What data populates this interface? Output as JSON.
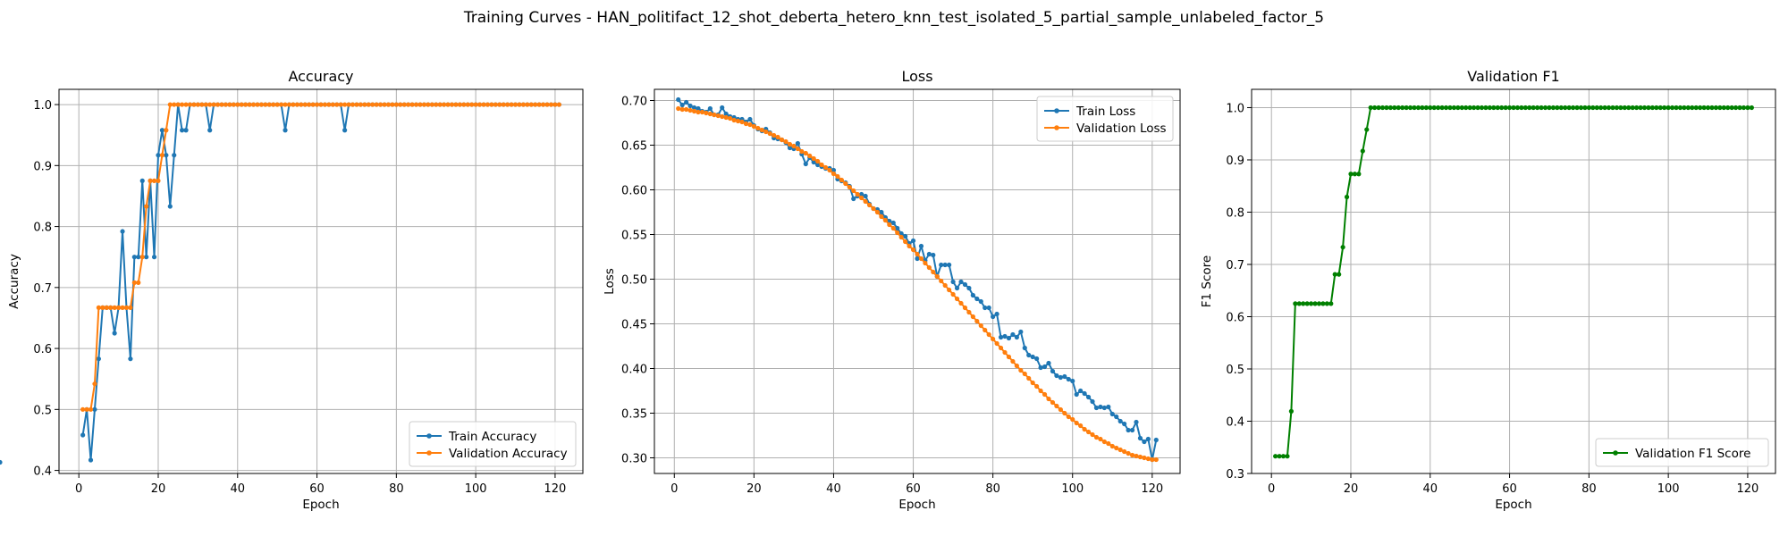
{
  "figure": {
    "suptitle": "Training Curves - HAN_politifact_12_shot_deberta_hetero_knn_test_isolated_5_partial_sample_unlabeled_factor_5"
  },
  "colors": {
    "train": "#1f77b4",
    "validation": "#ff7f0e",
    "f1": "#008000",
    "grid": "#b0b0b0"
  },
  "chart_data": [
    {
      "type": "line",
      "title": "Accuracy",
      "xlabel": "Epoch",
      "ylabel": "Accuracy",
      "xlim": [
        -5,
        127
      ],
      "ylim": [
        0.395,
        1.025
      ],
      "xticks": [
        0,
        20,
        40,
        60,
        80,
        100,
        120
      ],
      "yticks": [
        0.4,
        0.5,
        0.6,
        0.7,
        0.8,
        0.9,
        1.0
      ],
      "ytick_labels": [
        "0.4",
        "0.5",
        "0.6",
        "0.7",
        "0.8",
        "0.9",
        "1.0"
      ],
      "grid": true,
      "legend_position": "lower-right",
      "x": {
        "start": 1,
        "end": 121,
        "step": 1
      },
      "series": [
        {
          "name": "Train Accuracy",
          "color_key": "train",
          "values": [
            0.458,
            0.5,
            0.417,
            0.5,
            0.583,
            0.667,
            0.667,
            0.667,
            0.625,
            0.667,
            0.792,
            0.667,
            0.583,
            0.75,
            0.75,
            0.875,
            0.75,
            0.875,
            0.75,
            0.917,
            0.958,
            0.917,
            0.833,
            0.917,
            1.0,
            0.958,
            0.958,
            1.0,
            1.0,
            1.0,
            1.0,
            1.0,
            0.958,
            1.0,
            1.0,
            1.0,
            1.0,
            1.0,
            1.0,
            1.0,
            1.0,
            1.0,
            1.0,
            1.0,
            1.0,
            1.0,
            1.0,
            1.0,
            1.0,
            1.0,
            1.0,
            0.958,
            1.0,
            1.0,
            1.0,
            1.0,
            1.0,
            1.0,
            1.0,
            1.0,
            1.0,
            1.0,
            1.0,
            1.0,
            1.0,
            1.0,
            0.958,
            1.0,
            1.0,
            1.0,
            1.0,
            1.0,
            1.0,
            1.0,
            1.0,
            1.0,
            1.0,
            1.0,
            1.0,
            1.0,
            1.0,
            1.0,
            1.0,
            1.0,
            1.0,
            1.0,
            1.0,
            1.0,
            1.0,
            1.0,
            1.0,
            1.0,
            1.0,
            1.0,
            1.0,
            1.0,
            1.0,
            1.0,
            1.0,
            1.0,
            1.0,
            1.0,
            1.0,
            1.0,
            1.0,
            1.0,
            1.0,
            1.0,
            1.0,
            1.0,
            1.0,
            1.0,
            1.0,
            1.0,
            1.0,
            1.0,
            1.0,
            1.0,
            1.0,
            1.0,
            1.0
          ]
        },
        {
          "name": "Validation Accuracy",
          "color_key": "validation",
          "values": [
            0.5,
            0.5,
            0.5,
            0.542,
            0.667,
            0.667,
            0.667,
            0.667,
            0.667,
            0.667,
            0.667,
            0.667,
            0.667,
            0.708,
            0.708,
            0.75,
            0.833,
            0.875,
            0.875,
            0.875,
            0.917,
            0.958,
            1.0,
            1.0,
            1.0,
            1.0,
            1.0,
            1.0,
            1.0,
            1.0,
            1.0,
            1.0,
            1.0,
            1.0,
            1.0,
            1.0,
            1.0,
            1.0,
            1.0,
            1.0,
            1.0,
            1.0,
            1.0,
            1.0,
            1.0,
            1.0,
            1.0,
            1.0,
            1.0,
            1.0,
            1.0,
            1.0,
            1.0,
            1.0,
            1.0,
            1.0,
            1.0,
            1.0,
            1.0,
            1.0,
            1.0,
            1.0,
            1.0,
            1.0,
            1.0,
            1.0,
            1.0,
            1.0,
            1.0,
            1.0,
            1.0,
            1.0,
            1.0,
            1.0,
            1.0,
            1.0,
            1.0,
            1.0,
            1.0,
            1.0,
            1.0,
            1.0,
            1.0,
            1.0,
            1.0,
            1.0,
            1.0,
            1.0,
            1.0,
            1.0,
            1.0,
            1.0,
            1.0,
            1.0,
            1.0,
            1.0,
            1.0,
            1.0,
            1.0,
            1.0,
            1.0,
            1.0,
            1.0,
            1.0,
            1.0,
            1.0,
            1.0,
            1.0,
            1.0,
            1.0,
            1.0,
            1.0,
            1.0,
            1.0,
            1.0,
            1.0,
            1.0,
            1.0,
            1.0,
            1.0,
            1.0
          ]
        }
      ]
    },
    {
      "type": "line",
      "title": "Loss",
      "xlabel": "Epoch",
      "ylabel": "Loss",
      "xlim": [
        -5,
        127
      ],
      "ylim": [
        0.2825,
        0.7125
      ],
      "xticks": [
        0,
        20,
        40,
        60,
        80,
        100,
        120
      ],
      "yticks": [
        0.3,
        0.35,
        0.4,
        0.45,
        0.5,
        0.55,
        0.6,
        0.65,
        0.7
      ],
      "ytick_labels": [
        "0.30",
        "0.35",
        "0.40",
        "0.45",
        "0.50",
        "0.55",
        "0.60",
        "0.65",
        "0.70"
      ],
      "grid": true,
      "legend_position": "upper-right",
      "x": {
        "start": 1,
        "end": 121,
        "step": 1
      },
      "series": [
        {
          "name": "Train Loss",
          "color_key": "train",
          "values": [
            0.701,
            0.695,
            0.698,
            0.694,
            0.692,
            0.691,
            0.688,
            0.687,
            0.691,
            0.684,
            0.684,
            0.692,
            0.685,
            0.682,
            0.681,
            0.679,
            0.679,
            0.676,
            0.679,
            0.672,
            0.668,
            0.666,
            0.668,
            0.664,
            0.658,
            0.657,
            0.656,
            0.653,
            0.647,
            0.646,
            0.652,
            0.64,
            0.629,
            0.636,
            0.631,
            0.628,
            0.626,
            0.624,
            0.624,
            0.622,
            0.612,
            0.61,
            0.608,
            0.604,
            0.59,
            0.593,
            0.595,
            0.593,
            0.584,
            0.579,
            0.578,
            0.575,
            0.569,
            0.565,
            0.563,
            0.557,
            0.551,
            0.548,
            0.54,
            0.543,
            0.523,
            0.537,
            0.521,
            0.528,
            0.527,
            0.503,
            0.516,
            0.516,
            0.516,
            0.497,
            0.49,
            0.497,
            0.494,
            0.49,
            0.482,
            0.478,
            0.475,
            0.468,
            0.468,
            0.458,
            0.461,
            0.435,
            0.436,
            0.434,
            0.438,
            0.435,
            0.441,
            0.423,
            0.415,
            0.413,
            0.411,
            0.401,
            0.402,
            0.406,
            0.397,
            0.392,
            0.39,
            0.391,
            0.388,
            0.386,
            0.371,
            0.375,
            0.372,
            0.368,
            0.363,
            0.356,
            0.357,
            0.356,
            0.357,
            0.349,
            0.346,
            0.341,
            0.338,
            0.331,
            0.331,
            0.34,
            0.322,
            0.318,
            0.321,
            0.298,
            0.32,
            0.295
          ]
        },
        {
          "name": "Validation Loss",
          "color_key": "validation",
          "values": [
            0.691,
            0.69,
            0.69,
            0.689,
            0.688,
            0.687,
            0.687,
            0.686,
            0.685,
            0.684,
            0.683,
            0.682,
            0.681,
            0.68,
            0.678,
            0.677,
            0.676,
            0.674,
            0.673,
            0.671,
            0.669,
            0.667,
            0.665,
            0.663,
            0.661,
            0.659,
            0.656,
            0.654,
            0.651,
            0.649,
            0.646,
            0.643,
            0.641,
            0.638,
            0.635,
            0.632,
            0.628,
            0.625,
            0.622,
            0.618,
            0.615,
            0.611,
            0.607,
            0.603,
            0.599,
            0.595,
            0.591,
            0.587,
            0.583,
            0.579,
            0.575,
            0.57,
            0.566,
            0.561,
            0.557,
            0.552,
            0.547,
            0.542,
            0.537,
            0.533,
            0.528,
            0.523,
            0.518,
            0.513,
            0.508,
            0.503,
            0.498,
            0.493,
            0.488,
            0.483,
            0.478,
            0.473,
            0.468,
            0.463,
            0.458,
            0.453,
            0.448,
            0.443,
            0.438,
            0.433,
            0.428,
            0.423,
            0.418,
            0.413,
            0.408,
            0.403,
            0.398,
            0.394,
            0.389,
            0.384,
            0.38,
            0.375,
            0.371,
            0.366,
            0.362,
            0.358,
            0.354,
            0.35,
            0.346,
            0.343,
            0.339,
            0.336,
            0.332,
            0.329,
            0.326,
            0.323,
            0.321,
            0.318,
            0.316,
            0.313,
            0.311,
            0.309,
            0.307,
            0.305,
            0.303,
            0.302,
            0.301,
            0.3,
            0.299,
            0.298,
            0.298
          ]
        }
      ]
    },
    {
      "type": "line",
      "title": "Validation F1",
      "xlabel": "Epoch",
      "ylabel": "F1 Score",
      "xlim": [
        -5,
        127
      ],
      "ylim": [
        0.3,
        1.035
      ],
      "xticks": [
        0,
        20,
        40,
        60,
        80,
        100,
        120
      ],
      "yticks": [
        0.3,
        0.4,
        0.5,
        0.6,
        0.7,
        0.8,
        0.9,
        1.0
      ],
      "ytick_labels": [
        "0.3",
        "0.4",
        "0.5",
        "0.6",
        "0.7",
        "0.8",
        "0.9",
        "1.0"
      ],
      "grid": true,
      "legend_position": "lower-right",
      "x": {
        "start": 1,
        "end": 121,
        "step": 1
      },
      "series": [
        {
          "name": "Validation F1 Score",
          "color_key": "f1",
          "values": [
            0.333,
            0.333,
            0.333,
            0.333,
            0.419,
            0.625,
            0.625,
            0.625,
            0.625,
            0.625,
            0.625,
            0.625,
            0.625,
            0.625,
            0.625,
            0.681,
            0.681,
            0.733,
            0.829,
            0.873,
            0.873,
            0.873,
            0.917,
            0.958,
            1.0,
            1.0,
            1.0,
            1.0,
            1.0,
            1.0,
            1.0,
            1.0,
            1.0,
            1.0,
            1.0,
            1.0,
            1.0,
            1.0,
            1.0,
            1.0,
            1.0,
            1.0,
            1.0,
            1.0,
            1.0,
            1.0,
            1.0,
            1.0,
            1.0,
            1.0,
            1.0,
            1.0,
            1.0,
            1.0,
            1.0,
            1.0,
            1.0,
            1.0,
            1.0,
            1.0,
            1.0,
            1.0,
            1.0,
            1.0,
            1.0,
            1.0,
            1.0,
            1.0,
            1.0,
            1.0,
            1.0,
            1.0,
            1.0,
            1.0,
            1.0,
            1.0,
            1.0,
            1.0,
            1.0,
            1.0,
            1.0,
            1.0,
            1.0,
            1.0,
            1.0,
            1.0,
            1.0,
            1.0,
            1.0,
            1.0,
            1.0,
            1.0,
            1.0,
            1.0,
            1.0,
            1.0,
            1.0,
            1.0,
            1.0,
            1.0,
            1.0,
            1.0,
            1.0,
            1.0,
            1.0,
            1.0,
            1.0,
            1.0,
            1.0,
            1.0,
            1.0,
            1.0,
            1.0,
            1.0,
            1.0,
            1.0,
            1.0,
            1.0,
            1.0,
            1.0,
            1.0
          ]
        }
      ]
    }
  ]
}
